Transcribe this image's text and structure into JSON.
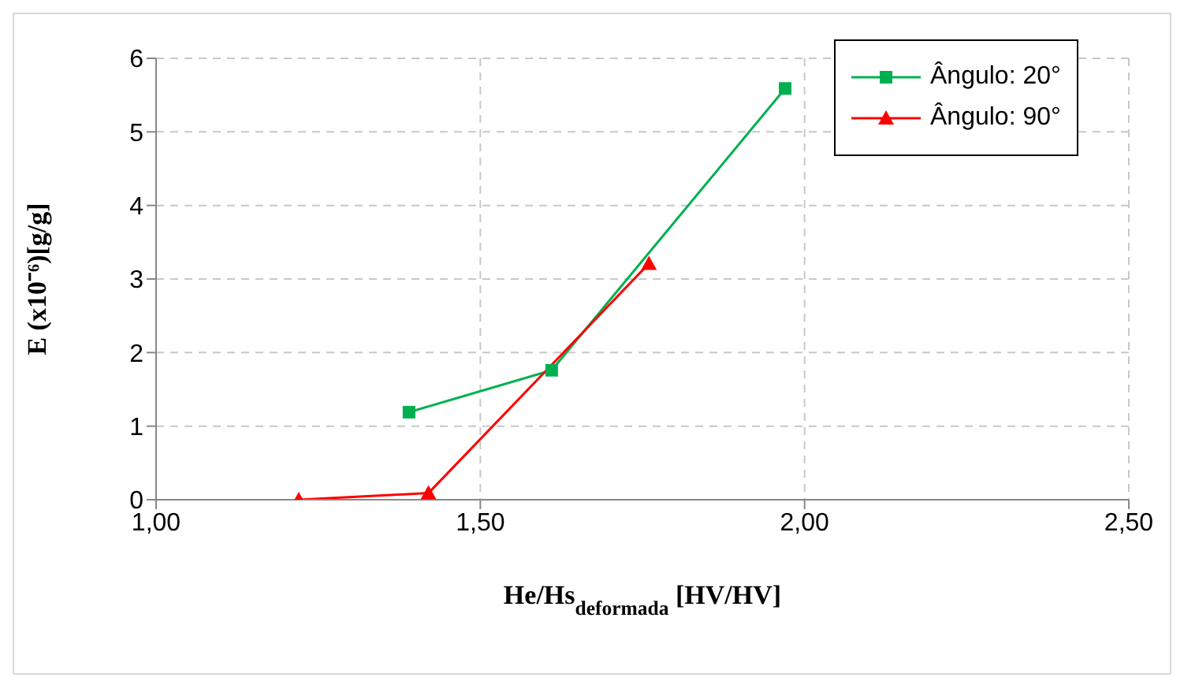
{
  "chart_data": {
    "type": "line",
    "xlabel": "He/Hs$_{deformada}$ [HV/HV]",
    "ylabel": "E (x10⁻⁶)[g/g]",
    "xlim": [
      1,
      2.5
    ],
    "xticks": [
      {
        "value": 1,
        "label": "1,00"
      },
      {
        "value": 1.5,
        "label": "1,50"
      },
      {
        "value": 2,
        "label": "2,00"
      },
      {
        "value": 2.5,
        "label": "2,50"
      }
    ],
    "ylim": [
      0,
      6
    ],
    "yticks": [
      0,
      1,
      2,
      3,
      4,
      5,
      6
    ],
    "grid": true,
    "legend": "top right",
    "line_style": "solid",
    "series": [
      {
        "name": "Ângulo: 20°",
        "color": "#00b050",
        "marker": "square",
        "x": [
          1.39,
          1.61,
          1.97
        ],
        "values": [
          1.19,
          1.76,
          5.59
        ]
      },
      {
        "name": "Ângulo: 90°",
        "color": "#ff0000",
        "marker": "triangle",
        "x": [
          1.22,
          1.42,
          1.76
        ],
        "values": [
          0,
          0.09,
          3.21
        ]
      }
    ]
  }
}
